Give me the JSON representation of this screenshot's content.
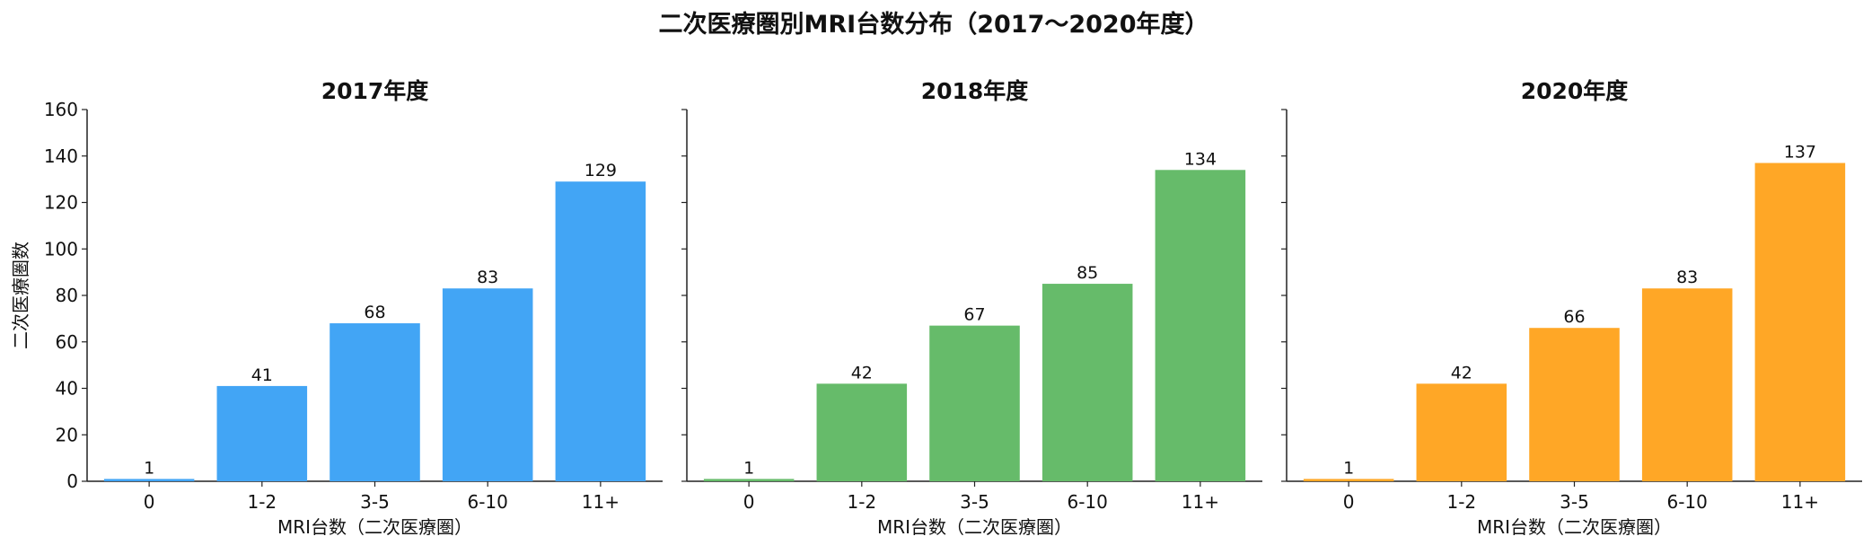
{
  "figure": {
    "title": "二次医療圏別MRI台数分布（2017〜2020年度）"
  },
  "chart_data": [
    {
      "type": "bar",
      "title": "2017年度",
      "categories": [
        "0",
        "1-2",
        "3-5",
        "6-10",
        "11+"
      ],
      "values": [
        1,
        41,
        68,
        83,
        129
      ],
      "xlabel": "MRI台数（二次医療圏）",
      "ylabel": "二次医療圏数",
      "ylim": [
        0,
        160
      ],
      "yticks": [
        0,
        20,
        40,
        60,
        80,
        100,
        120,
        140,
        160
      ],
      "color": "#42a5f5",
      "grid": false
    },
    {
      "type": "bar",
      "title": "2018年度",
      "categories": [
        "0",
        "1-2",
        "3-5",
        "6-10",
        "11+"
      ],
      "values": [
        1,
        42,
        67,
        85,
        134
      ],
      "xlabel": "MRI台数（二次医療圏）",
      "ylabel": "",
      "ylim": [
        0,
        160
      ],
      "yticks": [
        0,
        20,
        40,
        60,
        80,
        100,
        120,
        140,
        160
      ],
      "color": "#66bb6a",
      "grid": false
    },
    {
      "type": "bar",
      "title": "2020年度",
      "categories": [
        "0",
        "1-2",
        "3-5",
        "6-10",
        "11+"
      ],
      "values": [
        1,
        42,
        66,
        83,
        137
      ],
      "xlabel": "MRI台数（二次医療圏）",
      "ylabel": "",
      "ylim": [
        0,
        160
      ],
      "yticks": [
        0,
        20,
        40,
        60,
        80,
        100,
        120,
        140,
        160
      ],
      "color": "#ffa726",
      "grid": false
    }
  ]
}
